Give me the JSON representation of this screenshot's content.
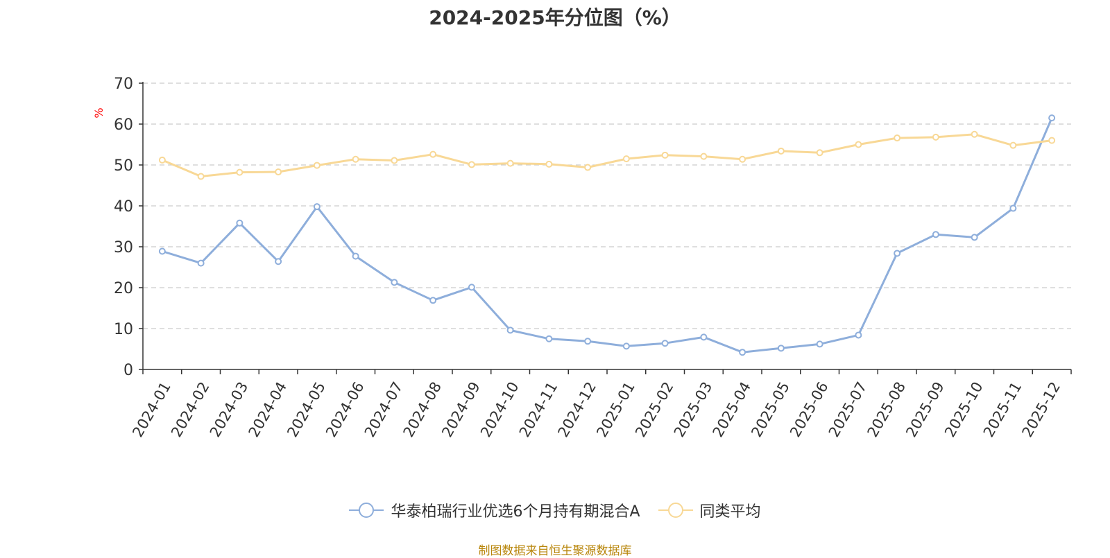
{
  "chart_data": {
    "type": "line",
    "title": "2024-2025年分位图（%）",
    "ylabel": "%",
    "xlabel": "",
    "ylim": [
      0,
      70
    ],
    "yticks": [
      0,
      10,
      20,
      30,
      40,
      50,
      60,
      70
    ],
    "grid": true,
    "legend_position": "bottom-center",
    "categories": [
      "2024-01",
      "2024-02",
      "2024-03",
      "2024-04",
      "2024-05",
      "2024-06",
      "2024-07",
      "2024-08",
      "2024-09",
      "2024-10",
      "2024-11",
      "2024-12",
      "2025-01",
      "2025-02",
      "2025-03",
      "2025-04",
      "2025-05",
      "2025-06",
      "2025-07",
      "2025-08",
      "2025-09",
      "2025-10",
      "2025-11",
      "2025-12"
    ],
    "series": [
      {
        "name": "华泰柏瑞行业优选6个月持有期混合A",
        "color": "#8eaedb",
        "values": [
          28.9,
          26.0,
          35.8,
          26.4,
          39.8,
          27.7,
          21.3,
          16.9,
          20.1,
          9.6,
          7.5,
          6.9,
          5.7,
          6.4,
          7.9,
          4.2,
          5.2,
          6.2,
          8.4,
          28.4,
          33.0,
          32.3,
          39.4,
          61.5
        ]
      },
      {
        "name": "同类平均",
        "color": "#f8d896",
        "values": [
          51.2,
          47.2,
          48.2,
          48.3,
          49.9,
          51.4,
          51.1,
          52.6,
          50.1,
          50.4,
          50.2,
          49.4,
          51.5,
          52.4,
          52.1,
          51.4,
          53.4,
          53.0,
          55.0,
          56.6,
          56.8,
          57.5,
          54.8,
          56.0
        ]
      }
    ]
  },
  "footer": {
    "source_text": "制图数据来自恒生聚源数据库"
  },
  "colors": {
    "axis": "#333333",
    "grid": "#cccccc",
    "ylabel": "#ff0000",
    "source": "#b8860b"
  }
}
